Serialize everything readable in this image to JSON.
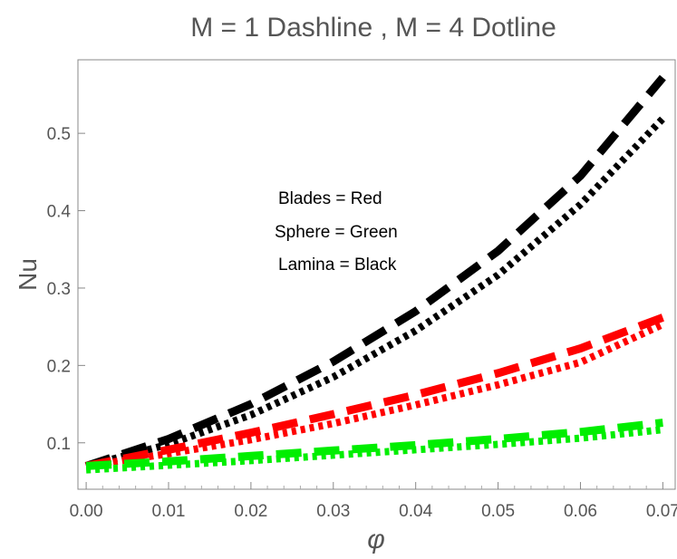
{
  "chart_data": {
    "type": "line",
    "title": "M = 1 Dashline , M = 4 Dotline",
    "xlabel": "φ",
    "ylabel": "Nu",
    "xlim": [
      -0.001,
      0.0715
    ],
    "ylim": [
      0.04,
      0.595
    ],
    "xticks": [
      "0.00",
      "0.01",
      "0.02",
      "0.03",
      "0.04",
      "0.05",
      "0.06",
      "0.07"
    ],
    "yticks": [
      "0.1",
      "0.2",
      "0.3",
      "0.4",
      "0.5"
    ],
    "grid": false,
    "legend": [
      "Blades   = Red",
      "Sphere   = Green",
      "Lamina   = Black"
    ],
    "colors": {
      "red": "#ff0000",
      "green": "#00ee00",
      "black": "#000000"
    },
    "series": [
      {
        "color": "black",
        "style": "dash",
        "x": [
          0,
          0.01,
          0.02,
          0.03,
          0.04,
          0.05,
          0.06,
          0.07
        ],
        "y": [
          0.07,
          0.105,
          0.15,
          0.205,
          0.27,
          0.348,
          0.445,
          0.572
        ]
      },
      {
        "color": "black",
        "style": "dot",
        "x": [
          0,
          0.01,
          0.02,
          0.03,
          0.04,
          0.05,
          0.06,
          0.07
        ],
        "y": [
          0.07,
          0.098,
          0.136,
          0.185,
          0.245,
          0.317,
          0.408,
          0.519
        ]
      },
      {
        "color": "red",
        "style": "dash",
        "x": [
          0,
          0.01,
          0.02,
          0.03,
          0.04,
          0.05,
          0.06,
          0.07
        ],
        "y": [
          0.07,
          0.091,
          0.113,
          0.137,
          0.162,
          0.19,
          0.222,
          0.262
        ]
      },
      {
        "color": "red",
        "style": "dot",
        "x": [
          0,
          0.01,
          0.02,
          0.03,
          0.04,
          0.05,
          0.06,
          0.07
        ],
        "y": [
          0.07,
          0.086,
          0.104,
          0.125,
          0.149,
          0.175,
          0.204,
          0.253
        ]
      },
      {
        "color": "green",
        "style": "dash",
        "x": [
          0,
          0.01,
          0.02,
          0.03,
          0.04,
          0.05,
          0.06,
          0.07
        ],
        "y": [
          0.07,
          0.076,
          0.083,
          0.09,
          0.097,
          0.105,
          0.114,
          0.126
        ]
      },
      {
        "color": "green",
        "style": "dot",
        "x": [
          0,
          0.01,
          0.02,
          0.03,
          0.04,
          0.05,
          0.06,
          0.07
        ],
        "y": [
          0.065,
          0.071,
          0.077,
          0.084,
          0.091,
          0.098,
          0.106,
          0.117
        ]
      }
    ]
  }
}
